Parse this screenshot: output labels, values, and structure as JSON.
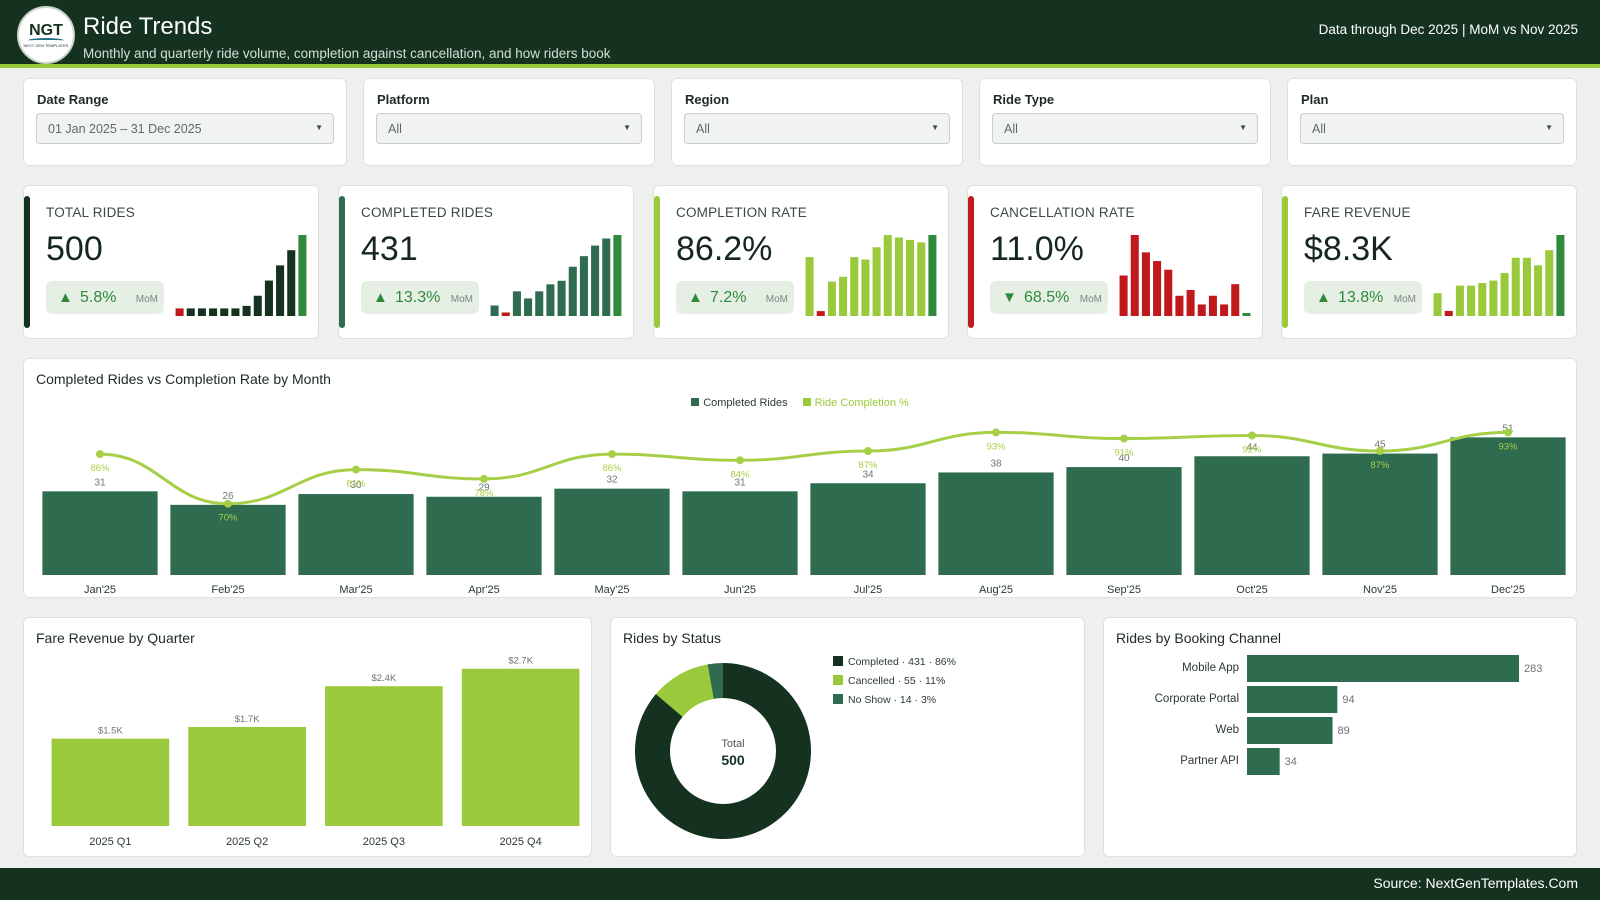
{
  "header": {
    "logo_text": "NGT",
    "logo_subtext": "NEXT GEN TEMPLATES",
    "title": "Ride Trends",
    "subtitle": "Monthly and quarterly ride volume, completion against cancellation, and how riders book",
    "data_through": "Data through Dec 2025 | MoM vs Nov 2025"
  },
  "filters": [
    {
      "label": "Date Range",
      "value": "01 Jan 2025 – 31 Dec 2025"
    },
    {
      "label": "Platform",
      "value": "All"
    },
    {
      "label": "Region",
      "value": "All"
    },
    {
      "label": "Ride Type",
      "value": "All"
    },
    {
      "label": "Plan",
      "value": "All"
    }
  ],
  "kpis": [
    {
      "label": "TOTAL RIDES",
      "value": "500",
      "arrow": "▲",
      "delta": "5.8%",
      "mom": "MoM",
      "accent": "#14321f"
    },
    {
      "label": "COMPLETED RIDES",
      "value": "431",
      "arrow": "▲",
      "delta": "13.3%",
      "mom": "MoM",
      "accent": "#2e6b4f"
    },
    {
      "label": "COMPLETION RATE",
      "value": "86.2%",
      "arrow": "▲",
      "delta": "7.2%",
      "mom": "MoM",
      "accent": "#9ac93b"
    },
    {
      "label": "CANCELLATION RATE",
      "value": "11.0%",
      "arrow": "▼",
      "delta": "68.5%",
      "mom": "MoM",
      "accent": "#c0191c"
    },
    {
      "label": "FARE REVENUE",
      "value": "$8.3K",
      "arrow": "▲",
      "delta": "13.8%",
      "mom": "MoM",
      "accent": "#9ac93b"
    }
  ],
  "colors": {
    "dark": "#14321f",
    "completed": "#2e6b4f",
    "lime": "#9ac93b",
    "lime_line": "#a6cf48",
    "red": "#c0191c",
    "positive": "#2f8a3b",
    "nav": "#14321f"
  },
  "icons": {
    "up": "triangle-up-icon",
    "down": "triangle-down-icon",
    "dropdown": "chevron-down-icon"
  },
  "monthly": {
    "title": "Completed Rides vs Completion Rate by Month",
    "legend_bar": "Completed Rides",
    "legend_line": "Ride Completion %"
  },
  "quarterly": {
    "title": "Fare Revenue by Quarter"
  },
  "status": {
    "title": "Rides by Status",
    "center_label": "Total",
    "center_value": "500"
  },
  "channel": {
    "title": "Rides by Booking Channel"
  },
  "footer": {
    "source": "Source: NextGenTemplates.Com"
  },
  "chart_data": [
    {
      "type": "bar",
      "id": "kpi-spark-total",
      "values": [
        3,
        3,
        3,
        3,
        3,
        3,
        4,
        8,
        14,
        20,
        26,
        32
      ]
    },
    {
      "type": "bar",
      "id": "kpi-spark-completed",
      "values": [
        3,
        1,
        7,
        5,
        7,
        9,
        10,
        14,
        17,
        20,
        22,
        23
      ]
    },
    {
      "type": "bar",
      "id": "kpi-spark-completion",
      "values": [
        24,
        2,
        14,
        16,
        24,
        23,
        28,
        33,
        32,
        31,
        30,
        33
      ]
    },
    {
      "type": "bar",
      "id": "kpi-spark-cancellation",
      "values": [
        14,
        28,
        22,
        19,
        16,
        7,
        9,
        4,
        7,
        4,
        11,
        1
      ]
    },
    {
      "type": "bar",
      "id": "kpi-spark-revenue",
      "values": [
        9,
        2,
        12,
        12,
        13,
        14,
        17,
        23,
        23,
        20,
        26,
        32
      ]
    },
    {
      "type": "bar+line",
      "title": "Completed Rides vs Completion Rate by Month",
      "categories": [
        "Jan'25",
        "Feb'25",
        "Mar'25",
        "Apr'25",
        "May'25",
        "Jun'25",
        "Jul'25",
        "Aug'25",
        "Sep'25",
        "Oct'25",
        "Nov'25",
        "Dec'25"
      ],
      "series": [
        {
          "name": "Completed Rides",
          "type": "bar",
          "values": [
            31,
            26,
            30,
            29,
            32,
            31,
            34,
            38,
            40,
            44,
            45,
            51
          ]
        },
        {
          "name": "Ride Completion %",
          "type": "line",
          "values": [
            86,
            70,
            81,
            78,
            86,
            84,
            87,
            93,
            91,
            92,
            87,
            93
          ]
        }
      ]
    },
    {
      "type": "bar",
      "title": "Fare Revenue by Quarter",
      "categories": [
        "2025 Q1",
        "2025 Q2",
        "2025 Q3",
        "2025 Q4"
      ],
      "values": [
        1.5,
        1.7,
        2.4,
        2.7
      ],
      "labels": [
        "$1.5K",
        "$1.7K",
        "$2.4K",
        "$2.7K"
      ]
    },
    {
      "type": "pie",
      "title": "Rides by Status",
      "categories": [
        "Completed",
        "Cancelled",
        "No Show"
      ],
      "values": [
        431,
        55,
        14
      ],
      "legend": [
        "Completed · 431 · 86%",
        "Cancelled · 55 · 11%",
        "No Show · 14 · 3%"
      ],
      "colors": [
        "#14321f",
        "#9ac93b",
        "#2e6b4f"
      ]
    },
    {
      "type": "bar",
      "orientation": "horizontal",
      "title": "Rides by Booking Channel",
      "categories": [
        "Mobile App",
        "Corporate Portal",
        "Web",
        "Partner API"
      ],
      "values": [
        283,
        94,
        89,
        34
      ]
    }
  ]
}
